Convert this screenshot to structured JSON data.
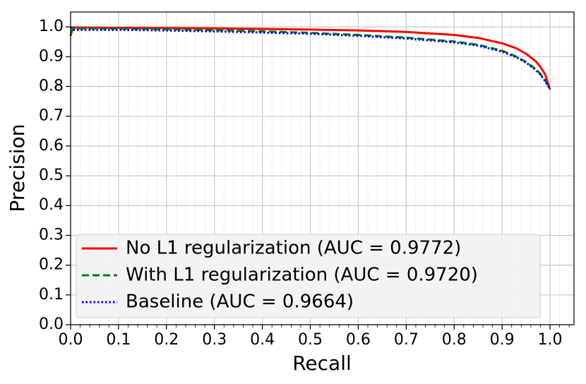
{
  "chart_data": {
    "type": "line",
    "x_label": "Recall",
    "y_label": "Precision",
    "x": [
      0,
      0.005,
      0.1,
      0.2,
      0.3,
      0.4,
      0.5,
      0.6,
      0.7,
      0.8,
      0.85,
      0.9,
      0.93,
      0.95,
      0.97,
      0.98,
      0.99,
      1.0
    ],
    "series": [
      {
        "name": "No L1 regularization (AUC = 0.9772)",
        "color": "#ff0000",
        "linestyle": "solid",
        "values": [
          0.97,
          0.998,
          0.997,
          0.996,
          0.995,
          0.993,
          0.991,
          0.988,
          0.983,
          0.973,
          0.963,
          0.945,
          0.928,
          0.91,
          0.885,
          0.866,
          0.84,
          0.79
        ]
      },
      {
        "name": "With L1 regularization (AUC = 0.9720)",
        "color": "#008000",
        "linestyle": "dashed",
        "values": [
          0.98,
          0.995,
          0.994,
          0.992,
          0.989,
          0.985,
          0.98,
          0.973,
          0.964,
          0.951,
          0.94,
          0.92,
          0.9,
          0.882,
          0.858,
          0.842,
          0.82,
          0.79
        ]
      },
      {
        "name": "Baseline (AUC = 0.9664)",
        "color": "#0000ff",
        "linestyle": "dotted",
        "values": [
          1.0,
          0.99,
          0.99,
          0.988,
          0.985,
          0.981,
          0.977,
          0.97,
          0.961,
          0.948,
          0.937,
          0.917,
          0.898,
          0.88,
          0.856,
          0.84,
          0.818,
          0.79
        ]
      }
    ],
    "xlim": [
      0,
      1.05
    ],
    "ylim": [
      0,
      1.05
    ],
    "xticks": [
      {
        "value": 0,
        "label": "0.0"
      },
      0.1,
      0.2,
      0.3,
      0.4,
      0.5,
      0.6,
      0.7,
      0.8,
      0.9,
      {
        "value": 1,
        "label": "1.0"
      }
    ],
    "yticks": [
      {
        "value": 0,
        "label": "0.0"
      },
      0.1,
      0.2,
      0.3,
      0.4,
      0.5,
      0.6,
      0.7,
      0.8,
      0.9,
      {
        "value": 1,
        "label": "1.0"
      }
    ],
    "grid": true,
    "minor_grid": true,
    "legend": "lower left"
  }
}
